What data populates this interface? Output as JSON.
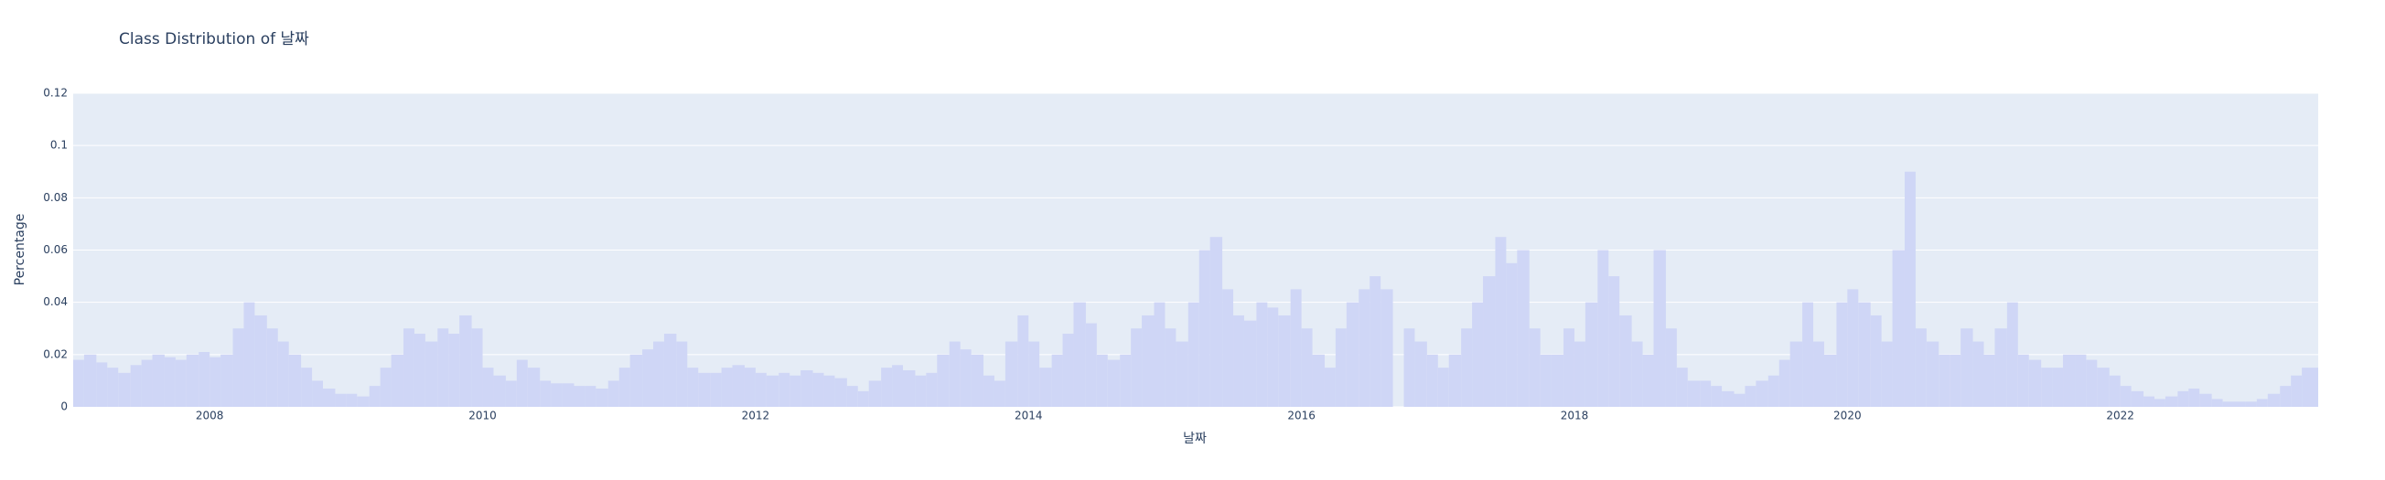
{
  "chart_data": {
    "type": "bar",
    "title": "Class Distribution of 날짜",
    "x_label": "날짜",
    "y_label": "Percentage",
    "color": "#cfd6f6",
    "grid": true,
    "x": [
      2007.0,
      2007.08,
      2007.17,
      2007.25,
      2007.33,
      2007.42,
      2007.5,
      2007.58,
      2007.67,
      2007.75,
      2007.83,
      2007.92,
      2008.0,
      2008.08,
      2008.17,
      2008.25,
      2008.33,
      2008.42,
      2008.5,
      2008.58,
      2008.67,
      2008.75,
      2008.83,
      2008.92,
      2009.0,
      2009.08,
      2009.17,
      2009.25,
      2009.33,
      2009.42,
      2009.5,
      2009.58,
      2009.67,
      2009.75,
      2009.83,
      2009.92,
      2010.0,
      2010.08,
      2010.17,
      2010.25,
      2010.33,
      2010.42,
      2010.5,
      2010.58,
      2010.67,
      2010.75,
      2010.83,
      2010.92,
      2011.0,
      2011.08,
      2011.17,
      2011.25,
      2011.33,
      2011.42,
      2011.5,
      2011.58,
      2011.67,
      2011.75,
      2011.83,
      2011.92,
      2012.0,
      2012.08,
      2012.17,
      2012.25,
      2012.33,
      2012.42,
      2012.5,
      2012.58,
      2012.67,
      2012.75,
      2012.83,
      2012.92,
      2013.0,
      2013.08,
      2013.17,
      2013.25,
      2013.33,
      2013.42,
      2013.5,
      2013.58,
      2013.67,
      2013.75,
      2013.83,
      2013.92,
      2014.0,
      2014.08,
      2014.17,
      2014.25,
      2014.33,
      2014.42,
      2014.5,
      2014.58,
      2014.67,
      2014.75,
      2014.83,
      2014.92,
      2015.0,
      2015.08,
      2015.17,
      2015.25,
      2015.33,
      2015.42,
      2015.5,
      2015.58,
      2015.67,
      2015.75,
      2015.83,
      2015.92,
      2016.0,
      2016.08,
      2016.17,
      2016.25,
      2016.33,
      2016.42,
      2016.5,
      2016.58,
      2016.67,
      2016.75,
      2016.83,
      2016.92,
      2017.0,
      2017.08,
      2017.17,
      2017.25,
      2017.33,
      2017.42,
      2017.5,
      2017.58,
      2017.67,
      2017.75,
      2017.83,
      2017.92,
      2018.0,
      2018.08,
      2018.17,
      2018.25,
      2018.33,
      2018.42,
      2018.5,
      2018.58,
      2018.67,
      2018.75,
      2018.83,
      2018.92,
      2019.0,
      2019.08,
      2019.17,
      2019.25,
      2019.33,
      2019.42,
      2019.5,
      2019.58,
      2019.67,
      2019.75,
      2019.83,
      2019.92,
      2020.0,
      2020.08,
      2020.17,
      2020.25,
      2020.33,
      2020.42,
      2020.5,
      2020.58,
      2020.67,
      2020.75,
      2020.83,
      2020.92,
      2021.0,
      2021.08,
      2021.17,
      2021.25,
      2021.33,
      2021.42,
      2021.5,
      2021.58,
      2021.67,
      2021.75,
      2021.83,
      2021.92,
      2022.0,
      2022.08,
      2022.17,
      2022.25,
      2022.33,
      2022.42,
      2022.5,
      2022.58,
      2022.67,
      2022.75,
      2022.83,
      2022.92,
      2023.0,
      2023.08,
      2023.17,
      2023.25,
      2023.33
    ],
    "values": [
      0.018,
      0.02,
      0.017,
      0.015,
      0.013,
      0.016,
      0.018,
      0.02,
      0.019,
      0.018,
      0.02,
      0.021,
      0.019,
      0.02,
      0.03,
      0.04,
      0.035,
      0.03,
      0.025,
      0.02,
      0.015,
      0.01,
      0.007,
      0.005,
      0.005,
      0.004,
      0.008,
      0.015,
      0.02,
      0.03,
      0.028,
      0.025,
      0.03,
      0.028,
      0.035,
      0.03,
      0.015,
      0.012,
      0.01,
      0.018,
      0.015,
      0.01,
      0.009,
      0.009,
      0.008,
      0.008,
      0.007,
      0.01,
      0.015,
      0.02,
      0.022,
      0.025,
      0.028,
      0.025,
      0.015,
      0.013,
      0.013,
      0.015,
      0.016,
      0.015,
      0.013,
      0.012,
      0.013,
      0.012,
      0.014,
      0.013,
      0.012,
      0.011,
      0.008,
      0.006,
      0.01,
      0.015,
      0.016,
      0.014,
      0.012,
      0.013,
      0.02,
      0.025,
      0.022,
      0.02,
      0.012,
      0.01,
      0.025,
      0.035,
      0.025,
      0.015,
      0.02,
      0.028,
      0.04,
      0.032,
      0.02,
      0.018,
      0.02,
      0.03,
      0.035,
      0.04,
      0.03,
      0.025,
      0.04,
      0.06,
      0.065,
      0.045,
      0.035,
      0.033,
      0.04,
      0.038,
      0.035,
      0.045,
      0.03,
      0.02,
      0.015,
      0.03,
      0.04,
      0.045,
      0.05,
      0.045,
      null,
      0.03,
      0.025,
      0.02,
      0.015,
      0.02,
      0.03,
      0.04,
      0.05,
      0.065,
      0.055,
      0.06,
      0.03,
      0.02,
      0.02,
      0.03,
      0.025,
      0.04,
      0.06,
      0.05,
      0.035,
      0.025,
      0.02,
      0.06,
      0.03,
      0.015,
      0.01,
      0.01,
      0.008,
      0.006,
      0.005,
      0.008,
      0.01,
      0.012,
      0.018,
      0.025,
      0.04,
      0.025,
      0.02,
      0.04,
      0.045,
      0.04,
      0.035,
      0.025,
      0.06,
      0.09,
      0.03,
      0.025,
      0.02,
      0.02,
      0.03,
      0.025,
      0.02,
      0.03,
      0.04,
      0.02,
      0.018,
      0.015,
      0.015,
      0.02,
      0.02,
      0.018,
      0.015,
      0.012,
      0.008,
      0.006,
      0.004,
      0.003,
      0.004,
      0.006,
      0.007,
      0.005,
      0.003,
      0.002,
      0.002,
      0.002,
      0.003,
      0.005,
      0.008,
      0.012,
      0.015
    ],
    "xlim": [
      2007,
      2023.45
    ],
    "xticks": [
      2008,
      2010,
      2012,
      2014,
      2016,
      2018,
      2020,
      2022
    ],
    "ylim": [
      0,
      0.12
    ],
    "yticks": [
      0,
      0.02,
      0.04,
      0.06,
      0.08,
      0.1,
      0.12
    ]
  }
}
